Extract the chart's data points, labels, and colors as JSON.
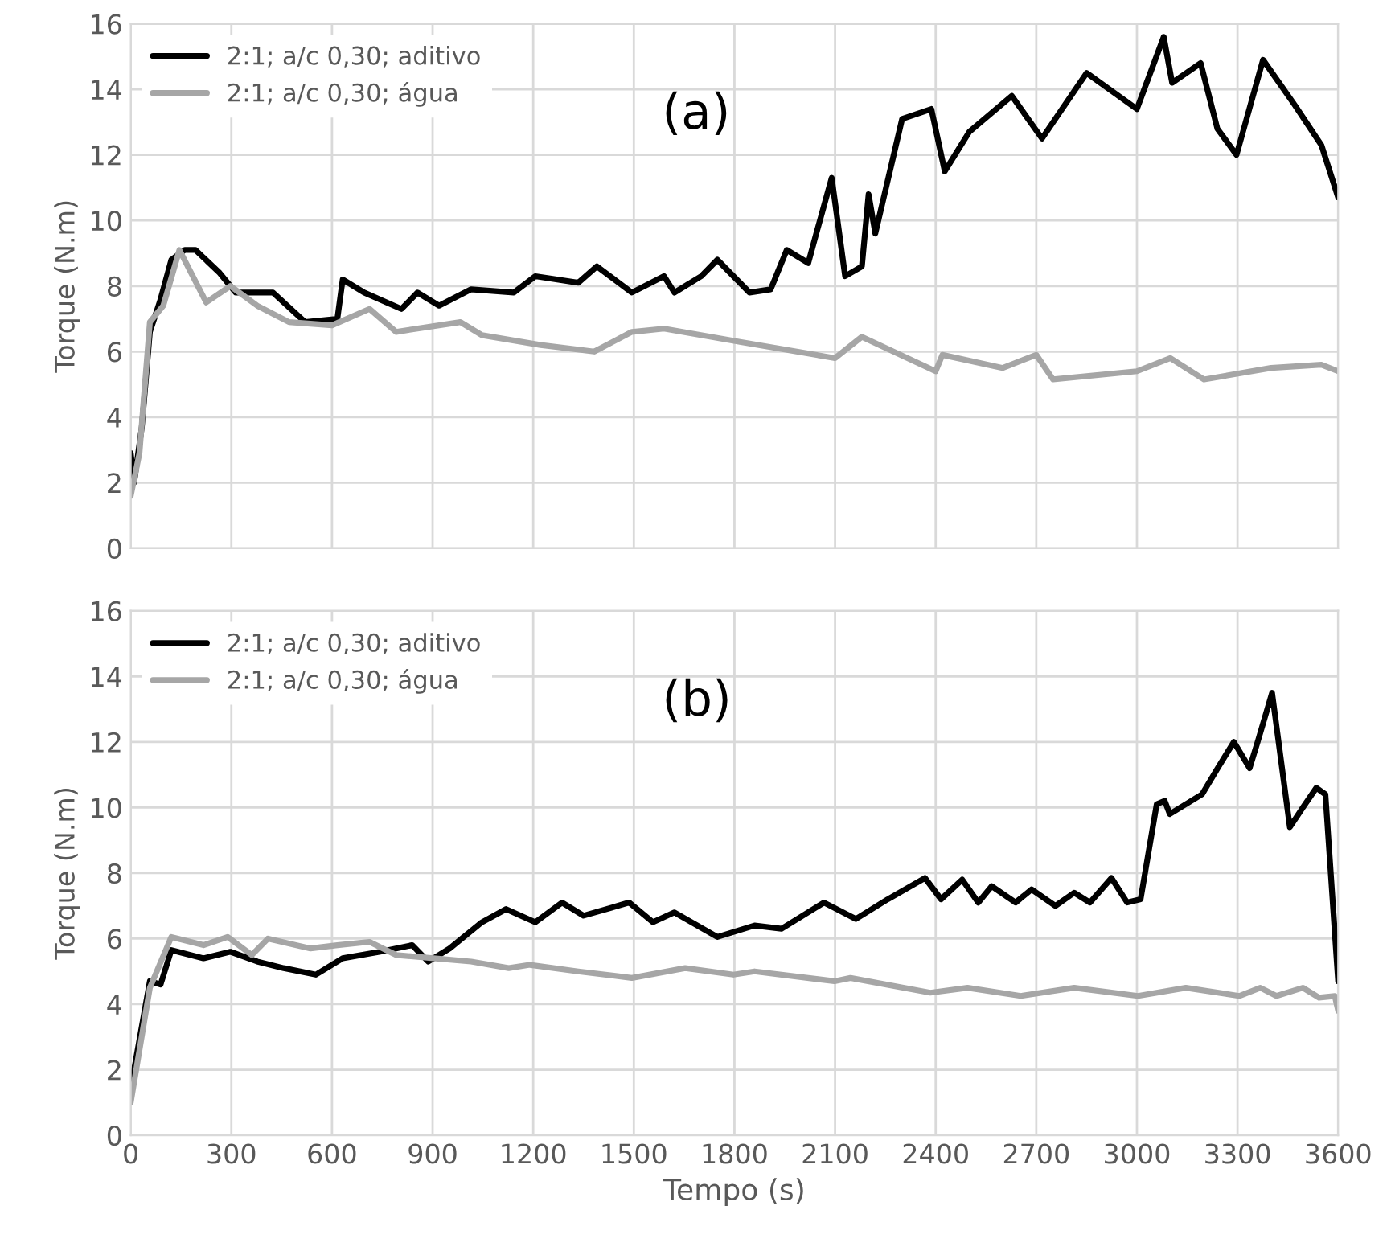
{
  "chart_data": [
    {
      "type": "line",
      "ylabel": "Torque (N.m)",
      "annotations": [
        "(a)"
      ],
      "xlim": [
        0,
        3600
      ],
      "xticks": [
        0,
        300,
        600,
        900,
        1200,
        1500,
        1800,
        2100,
        2400,
        2700,
        3000,
        3300,
        3600
      ],
      "ylim": [
        0,
        16
      ],
      "yticks": [
        0,
        2,
        4,
        6,
        8,
        10,
        12,
        14,
        16
      ],
      "grid": true,
      "legend": "top left",
      "tick_labels": "y",
      "line_style": "solid",
      "marker": "none",
      "series": [
        {
          "name": "2:1; a/c 0,30; aditivo",
          "color": "#000000",
          "x": [
            0,
            10,
            33,
            57,
            89,
            121,
            161,
            193,
            265,
            313,
            424,
            520,
            616,
            632,
            696,
            807,
            855,
            919,
            1015,
            1142,
            1206,
            1334,
            1390,
            1494,
            1590,
            1621,
            1701,
            1749,
            1845,
            1908,
            1956,
            2020,
            2044,
            2090,
            2130,
            2180,
            2200,
            2220,
            2300,
            2387,
            2427,
            2500,
            2627,
            2717,
            2850,
            3000,
            3080,
            3105,
            3190,
            3240,
            3297,
            3376,
            3472,
            3550,
            3600
          ],
          "values": [
            2.9,
            2.0,
            3.7,
            6.6,
            7.6,
            8.8,
            9.1,
            9.1,
            8.4,
            7.8,
            7.8,
            6.9,
            7.0,
            8.2,
            7.8,
            7.3,
            7.8,
            7.4,
            7.9,
            7.8,
            8.3,
            8.1,
            8.6,
            7.8,
            8.3,
            7.8,
            8.3,
            8.8,
            7.8,
            7.9,
            9.1,
            8.7,
            9.6,
            11.3,
            8.3,
            8.6,
            10.8,
            9.6,
            13.1,
            13.4,
            11.5,
            12.7,
            13.8,
            12.5,
            14.5,
            13.4,
            15.6,
            14.2,
            14.8,
            12.8,
            12.0,
            14.9,
            13.5,
            12.3,
            10.7
          ]
        },
        {
          "name": "2:1; a/c 0,30; água",
          "color": "#a6a6a6",
          "x": [
            0,
            26,
            57,
            97,
            145,
            225,
            297,
            377,
            472,
            600,
            712,
            791,
            983,
            1047,
            1222,
            1382,
            1494,
            1590,
            1813,
            2100,
            2180,
            2400,
            2420,
            2600,
            2700,
            2750,
            3000,
            3100,
            3200,
            3400,
            3550,
            3600
          ],
          "values": [
            1.6,
            2.9,
            6.9,
            7.4,
            9.1,
            7.5,
            8.0,
            7.4,
            6.9,
            6.8,
            7.3,
            6.6,
            6.9,
            6.5,
            6.2,
            6.0,
            6.6,
            6.7,
            6.3,
            5.8,
            6.45,
            5.4,
            5.9,
            5.5,
            5.9,
            5.15,
            5.4,
            5.8,
            5.15,
            5.5,
            5.6,
            5.4
          ]
        }
      ]
    },
    {
      "type": "line",
      "xlabel": "Tempo (s)",
      "ylabel": "Torque (N.m)",
      "annotations": [
        "(b)"
      ],
      "xlim": [
        0,
        3600
      ],
      "xticks": [
        0,
        300,
        600,
        900,
        1200,
        1500,
        1800,
        2100,
        2400,
        2700,
        3000,
        3300,
        3600
      ],
      "ylim": [
        0,
        16
      ],
      "yticks": [
        0,
        2,
        4,
        6,
        8,
        10,
        12,
        14,
        16
      ],
      "grid": true,
      "legend": "top left",
      "line_style": "solid",
      "marker": "none",
      "series": [
        {
          "name": "2:1; a/c 0,30; aditivo",
          "color": "#000000",
          "x": [
            0,
            10,
            57,
            89,
            121,
            217,
            297,
            377,
            456,
            552,
            632,
            744,
            839,
            887,
            951,
            1047,
            1119,
            1206,
            1286,
            1350,
            1486,
            1557,
            1621,
            1749,
            1860,
            1940,
            2067,
            2162,
            2257,
            2368,
            2416,
            2479,
            2527,
            2567,
            2638,
            2686,
            2757,
            2813,
            2860,
            2924,
            2971,
            3011,
            3059,
            3083,
            3098,
            3146,
            3194,
            3241,
            3289,
            3336,
            3360,
            3403,
            3456,
            3495,
            3535,
            3562,
            3600
          ],
          "values": [
            1.6,
            2.0,
            4.7,
            4.6,
            5.65,
            5.4,
            5.6,
            5.3,
            5.1,
            4.9,
            5.4,
            5.6,
            5.8,
            5.3,
            5.7,
            6.5,
            6.9,
            6.5,
            7.1,
            6.7,
            7.1,
            6.5,
            6.8,
            6.05,
            6.4,
            6.3,
            7.1,
            6.6,
            7.2,
            7.85,
            7.2,
            7.8,
            7.1,
            7.6,
            7.1,
            7.5,
            7.0,
            7.4,
            7.1,
            7.85,
            7.1,
            7.2,
            10.1,
            10.2,
            9.8,
            10.1,
            10.4,
            11.2,
            12.0,
            11.2,
            12.0,
            13.5,
            9.4,
            10.0,
            10.6,
            10.4,
            4.7
          ]
        },
        {
          "name": "2:1; a/c 0,30; água",
          "color": "#a6a6a6",
          "x": [
            0,
            57,
            121,
            217,
            289,
            361,
            409,
            536,
            616,
            712,
            791,
            903,
            1015,
            1127,
            1190,
            1334,
            1494,
            1653,
            1797,
            1860,
            2098,
            2146,
            2384,
            2495,
            2654,
            2813,
            3003,
            3146,
            3305,
            3368,
            3416,
            3495,
            3543,
            3590,
            3600
          ],
          "values": [
            1.0,
            4.5,
            6.05,
            5.8,
            6.05,
            5.5,
            6.0,
            5.7,
            5.8,
            5.9,
            5.5,
            5.4,
            5.3,
            5.1,
            5.2,
            5.0,
            4.8,
            5.1,
            4.9,
            5.0,
            4.7,
            4.8,
            4.35,
            4.5,
            4.25,
            4.5,
            4.25,
            4.5,
            4.25,
            4.5,
            4.25,
            4.5,
            4.2,
            4.25,
            3.8
          ]
        }
      ]
    }
  ]
}
